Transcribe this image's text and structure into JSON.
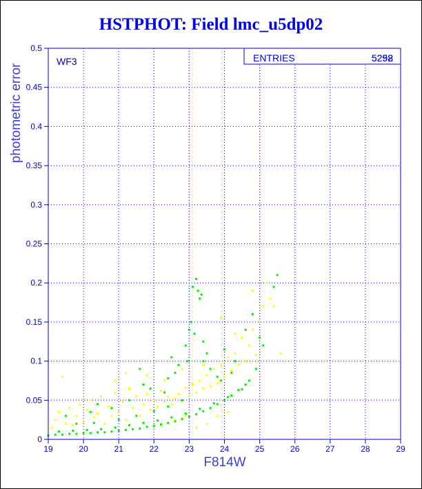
{
  "chart_data": {
    "type": "scatter",
    "title": "HSTPHOT: Field lmc_u5dp02",
    "xlabel": "F814W",
    "ylabel": "photometric error",
    "xlim": [
      19,
      29
    ],
    "ylim": [
      0,
      0.5
    ],
    "x_ticks": [
      "19",
      "20",
      "21",
      "22",
      "23",
      "24",
      "25",
      "26",
      "27",
      "28",
      "29"
    ],
    "y_ticks": [
      "0",
      "0.05",
      "0.1",
      "0.15",
      "0.2",
      "0.25",
      "0.3",
      "0.35",
      "0.4",
      "0.45",
      "0.5"
    ],
    "grid": true,
    "panel_label": "WF3",
    "stats_label": "ENTRIES",
    "entries_values": [
      "5298",
      "5252"
    ],
    "series": [
      {
        "color": "#00ee00",
        "points": [
          [
            19.0,
            0.005
          ],
          [
            19.2,
            0.006
          ],
          [
            19.4,
            0.006
          ],
          [
            19.6,
            0.007
          ],
          [
            19.8,
            0.007
          ],
          [
            20.0,
            0.008
          ],
          [
            20.2,
            0.008
          ],
          [
            20.4,
            0.009
          ],
          [
            20.6,
            0.009
          ],
          [
            20.8,
            0.01
          ],
          [
            21.0,
            0.011
          ],
          [
            21.2,
            0.012
          ],
          [
            21.4,
            0.013
          ],
          [
            21.6,
            0.014
          ],
          [
            21.8,
            0.016
          ],
          [
            22.0,
            0.017
          ],
          [
            22.2,
            0.019
          ],
          [
            22.4,
            0.021
          ],
          [
            22.6,
            0.023
          ],
          [
            22.8,
            0.026
          ],
          [
            23.0,
            0.029
          ],
          [
            23.2,
            0.032
          ],
          [
            23.4,
            0.036
          ],
          [
            23.6,
            0.04
          ],
          [
            23.8,
            0.045
          ],
          [
            24.0,
            0.05
          ],
          [
            24.2,
            0.056
          ],
          [
            24.4,
            0.063
          ],
          [
            24.6,
            0.07
          ],
          [
            24.7,
            0.075
          ],
          [
            19.3,
            0.01
          ],
          [
            19.7,
            0.011
          ],
          [
            20.1,
            0.012
          ],
          [
            20.5,
            0.013
          ],
          [
            20.9,
            0.015
          ],
          [
            21.3,
            0.018
          ],
          [
            21.7,
            0.021
          ],
          [
            22.1,
            0.024
          ],
          [
            22.5,
            0.028
          ],
          [
            22.9,
            0.033
          ],
          [
            23.3,
            0.039
          ],
          [
            23.7,
            0.046
          ],
          [
            24.1,
            0.054
          ],
          [
            24.5,
            0.064
          ],
          [
            20.3,
            0.021
          ],
          [
            21.0,
            0.025
          ],
          [
            21.5,
            0.03
          ],
          [
            22.0,
            0.036
          ],
          [
            22.4,
            0.042
          ],
          [
            22.8,
            0.05
          ],
          [
            22.6,
            0.085
          ],
          [
            22.4,
            0.078
          ],
          [
            22.3,
            0.06
          ],
          [
            22.7,
            0.095
          ],
          [
            22.5,
            0.105
          ],
          [
            22.9,
            0.12
          ],
          [
            23.0,
            0.14
          ],
          [
            23.1,
            0.195
          ],
          [
            23.2,
            0.205
          ],
          [
            23.25,
            0.19
          ],
          [
            23.3,
            0.18
          ],
          [
            23.35,
            0.185
          ],
          [
            23.05,
            0.15
          ],
          [
            22.95,
            0.1
          ],
          [
            23.15,
            0.135
          ],
          [
            23.4,
            0.125
          ],
          [
            23.5,
            0.11
          ],
          [
            23.6,
            0.09
          ],
          [
            23.8,
            0.08
          ],
          [
            24.0,
            0.115
          ],
          [
            24.3,
            0.1
          ],
          [
            24.6,
            0.14
          ],
          [
            24.8,
            0.16
          ],
          [
            25.0,
            0.13
          ],
          [
            25.1,
            0.12
          ],
          [
            24.9,
            0.09
          ],
          [
            21.7,
            0.07
          ],
          [
            21.9,
            0.065
          ],
          [
            21.3,
            0.05
          ],
          [
            20.8,
            0.04
          ],
          [
            20.2,
            0.035
          ],
          [
            19.5,
            0.03
          ],
          [
            25.4,
            0.195
          ],
          [
            25.5,
            0.21
          ],
          [
            21.6,
            0.09
          ],
          [
            20.4,
            0.045
          ],
          [
            19.8,
            0.02
          ],
          [
            23.9,
            0.075
          ],
          [
            24.2,
            0.085
          ],
          [
            23.4,
            0.1
          ]
        ]
      },
      {
        "color": "#ffff00",
        "points": [
          [
            19.1,
            0.015
          ],
          [
            19.2,
            0.025
          ],
          [
            19.3,
            0.035
          ],
          [
            19.4,
            0.08
          ],
          [
            19.5,
            0.02
          ],
          [
            19.6,
            0.04
          ],
          [
            19.7,
            0.018
          ],
          [
            19.8,
            0.03
          ],
          [
            19.9,
            0.045
          ],
          [
            20.0,
            0.022
          ],
          [
            20.1,
            0.038
          ],
          [
            20.2,
            0.05
          ],
          [
            20.3,
            0.028
          ],
          [
            20.4,
            0.033
          ],
          [
            20.5,
            0.055
          ],
          [
            20.6,
            0.02
          ],
          [
            20.7,
            0.042
          ],
          [
            20.8,
            0.03
          ],
          [
            20.9,
            0.06
          ],
          [
            21.0,
            0.035
          ],
          [
            21.1,
            0.048
          ],
          [
            21.2,
            0.025
          ],
          [
            21.3,
            0.065
          ],
          [
            21.4,
            0.04
          ],
          [
            21.5,
            0.055
          ],
          [
            21.6,
            0.03
          ],
          [
            21.7,
            0.045
          ],
          [
            21.8,
            0.058
          ],
          [
            21.9,
            0.038
          ],
          [
            22.0,
            0.05
          ],
          [
            22.1,
            0.042
          ],
          [
            22.2,
            0.062
          ],
          [
            22.3,
            0.048
          ],
          [
            22.4,
            0.055
          ],
          [
            22.5,
            0.045
          ],
          [
            22.6,
            0.052
          ],
          [
            22.7,
            0.058
          ],
          [
            22.8,
            0.048
          ],
          [
            22.9,
            0.066
          ],
          [
            23.0,
            0.055
          ],
          [
            23.1,
            0.07
          ],
          [
            23.2,
            0.06
          ],
          [
            23.3,
            0.075
          ],
          [
            23.4,
            0.065
          ],
          [
            23.5,
            0.082
          ],
          [
            23.6,
            0.068
          ],
          [
            23.7,
            0.09
          ],
          [
            23.8,
            0.072
          ],
          [
            23.9,
            0.095
          ],
          [
            24.0,
            0.08
          ],
          [
            24.1,
            0.105
          ],
          [
            24.2,
            0.088
          ],
          [
            24.3,
            0.11
          ],
          [
            24.4,
            0.095
          ],
          [
            24.5,
            0.13
          ],
          [
            24.6,
            0.1
          ],
          [
            24.7,
            0.12
          ],
          [
            24.8,
            0.14
          ],
          [
            24.9,
            0.108
          ],
          [
            25.0,
            0.15
          ],
          [
            25.2,
            0.2
          ],
          [
            25.3,
            0.18
          ],
          [
            25.4,
            0.17
          ],
          [
            25.6,
            0.11
          ],
          [
            25.1,
            0.17
          ],
          [
            24.8,
            0.19
          ],
          [
            22.6,
            0.025
          ],
          [
            22.9,
            0.03
          ],
          [
            23.2,
            0.015
          ],
          [
            23.5,
            0.02
          ],
          [
            23.8,
            0.03
          ],
          [
            24.1,
            0.035
          ],
          [
            20.9,
            0.075
          ],
          [
            21.2,
            0.085
          ],
          [
            21.8,
            0.082
          ],
          [
            22.3,
            0.075
          ],
          [
            22.8,
            0.09
          ],
          [
            23.4,
            0.095
          ],
          [
            23.9,
            0.155
          ],
          [
            24.3,
            0.135
          ]
        ]
      }
    ]
  }
}
